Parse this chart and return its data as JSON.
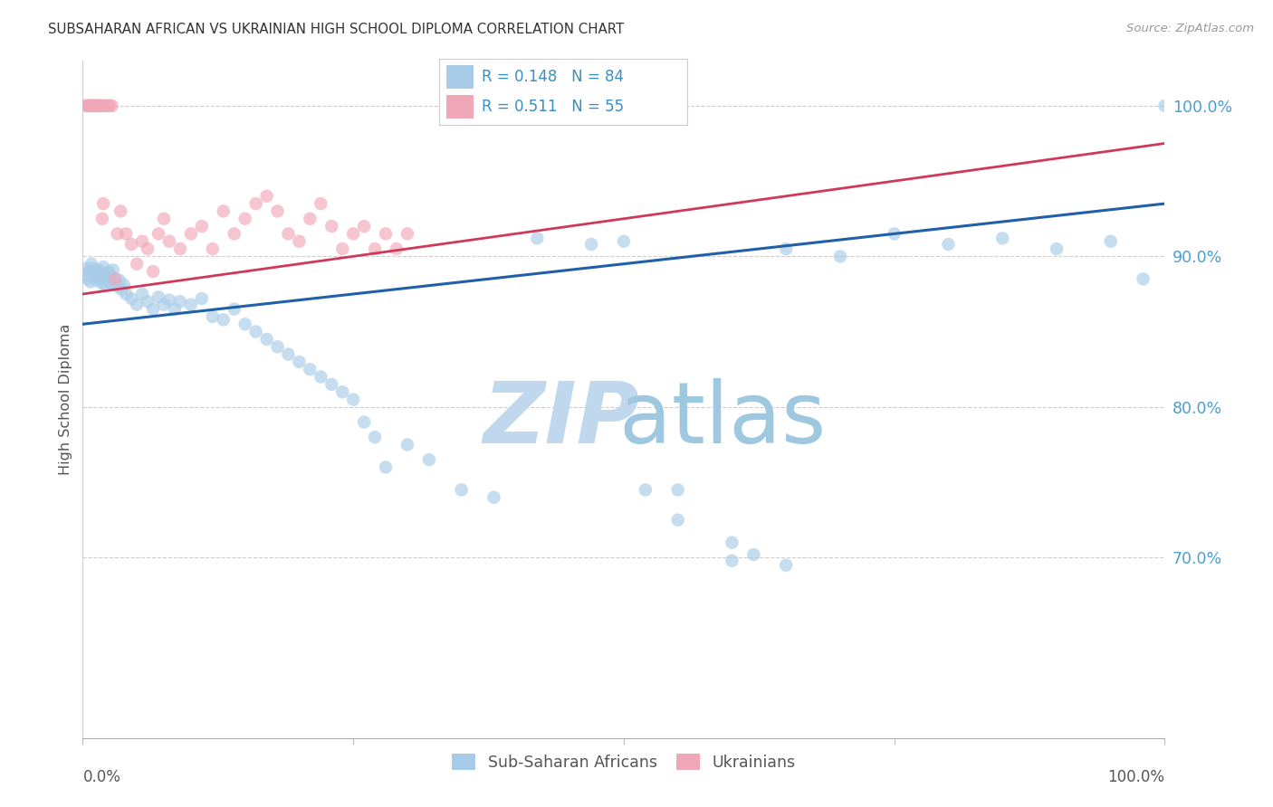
{
  "title": "SUBSAHARAN AFRICAN VS UKRAINIAN HIGH SCHOOL DIPLOMA CORRELATION CHART",
  "source": "Source: ZipAtlas.com",
  "ylabel": "High School Diploma",
  "legend_label1": "Sub-Saharan Africans",
  "legend_label2": "Ukrainians",
  "legend_r1": "0.148",
  "legend_n1": "84",
  "legend_r2": "0.511",
  "legend_n2": "55",
  "color_blue": "#a8cce8",
  "color_pink": "#f0a8b8",
  "color_line_blue": "#2060a8",
  "color_line_pink": "#d03858",
  "watermark_zip_color": "#c8e0f0",
  "watermark_atlas_color": "#a0c8e8",
  "ytick_vals": [
    70,
    80,
    90,
    100
  ],
  "ytick_labels": [
    "70.0%",
    "80.0%",
    "90.0%",
    "100.0%"
  ],
  "ymin": 58,
  "ymax": 103,
  "xmin": 0,
  "xmax": 100,
  "blue_line_y0": 85.5,
  "blue_line_y1": 93.5,
  "pink_line_y0": 87.5,
  "pink_line_y1": 97.5,
  "blue_x": [
    0.3,
    0.4,
    0.5,
    0.6,
    0.7,
    0.8,
    0.9,
    1.0,
    1.1,
    1.2,
    1.3,
    1.4,
    1.5,
    1.6,
    1.7,
    1.8,
    1.9,
    2.0,
    2.1,
    2.2,
    2.3,
    2.4,
    2.5,
    2.6,
    2.7,
    2.8,
    3.0,
    3.2,
    3.4,
    3.6,
    3.8,
    4.0,
    4.5,
    5.0,
    5.5,
    6.0,
    6.5,
    7.0,
    7.5,
    8.0,
    8.5,
    9.0,
    10.0,
    11.0,
    12.0,
    13.0,
    14.0,
    15.0,
    16.0,
    17.0,
    18.0,
    19.0,
    20.0,
    21.0,
    22.0,
    23.0,
    24.0,
    25.0,
    26.0,
    27.0,
    28.0,
    30.0,
    32.0,
    35.0,
    38.0,
    42.0,
    47.0,
    50.0,
    55.0,
    60.0,
    65.0,
    70.0,
    75.0,
    80.0,
    85.0,
    90.0,
    95.0,
    98.0,
    100.0,
    52.0,
    55.0,
    60.0,
    62.0,
    65.0
  ],
  "blue_y": [
    88.8,
    89.2,
    88.5,
    89.0,
    88.3,
    89.5,
    88.8,
    89.2,
    88.6,
    89.0,
    88.4,
    88.8,
    89.1,
    88.5,
    88.9,
    88.2,
    89.3,
    88.7,
    88.1,
    88.9,
    88.5,
    89.0,
    88.3,
    88.7,
    88.2,
    89.1,
    88.5,
    88.0,
    88.4,
    87.8,
    88.1,
    87.5,
    87.2,
    86.8,
    87.5,
    87.0,
    86.5,
    87.3,
    86.8,
    87.1,
    86.5,
    87.0,
    86.8,
    87.2,
    86.0,
    85.8,
    86.5,
    85.5,
    85.0,
    84.5,
    84.0,
    83.5,
    83.0,
    82.5,
    82.0,
    81.5,
    81.0,
    80.5,
    79.0,
    78.0,
    76.0,
    77.5,
    76.5,
    74.5,
    74.0,
    91.2,
    90.8,
    91.0,
    74.5,
    69.8,
    90.5,
    90.0,
    91.5,
    90.8,
    91.2,
    90.5,
    91.0,
    88.5,
    100.0,
    74.5,
    72.5,
    71.0,
    70.2,
    69.5
  ],
  "pink_x": [
    0.3,
    0.4,
    0.5,
    0.6,
    0.7,
    0.8,
    0.9,
    1.0,
    1.1,
    1.2,
    1.3,
    1.5,
    1.6,
    1.7,
    1.8,
    1.9,
    2.0,
    2.1,
    2.3,
    2.5,
    2.7,
    3.0,
    3.2,
    3.5,
    4.0,
    4.5,
    5.0,
    5.5,
    6.0,
    6.5,
    7.0,
    7.5,
    8.0,
    9.0,
    10.0,
    11.0,
    12.0,
    13.0,
    14.0,
    15.0,
    16.0,
    17.0,
    18.0,
    19.0,
    20.0,
    21.0,
    22.0,
    23.0,
    24.0,
    25.0,
    26.0,
    27.0,
    28.0,
    29.0,
    30.0
  ],
  "pink_y": [
    100.0,
    100.0,
    100.0,
    100.0,
    100.0,
    100.0,
    100.0,
    100.0,
    100.0,
    100.0,
    100.0,
    100.0,
    100.0,
    100.0,
    92.5,
    93.5,
    100.0,
    100.0,
    100.0,
    100.0,
    100.0,
    88.5,
    91.5,
    93.0,
    91.5,
    90.8,
    89.5,
    91.0,
    90.5,
    89.0,
    91.5,
    92.5,
    91.0,
    90.5,
    91.5,
    92.0,
    90.5,
    93.0,
    91.5,
    92.5,
    93.5,
    94.0,
    93.0,
    91.5,
    91.0,
    92.5,
    93.5,
    92.0,
    90.5,
    91.5,
    92.0,
    90.5,
    91.5,
    90.5,
    91.5
  ]
}
